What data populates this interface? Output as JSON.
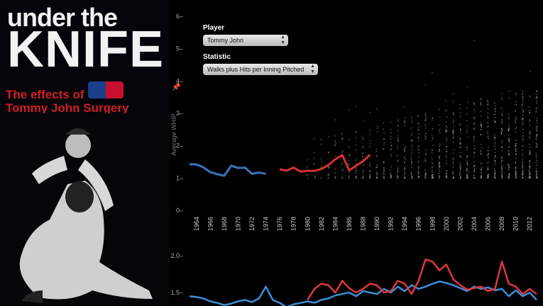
{
  "brand": {
    "title_line_1": "under the",
    "title_line_2": "KNIFE",
    "subtitle_line_1": "The effects of",
    "subtitle_line_2": "Tommy John Surgery",
    "mlb_logo_icon": "mlb-logo"
  },
  "controls": {
    "player_label": "Player",
    "player_value": "Tommy John",
    "statistic_label": "Statistic",
    "statistic_value": "Walks plus Hits per Inning Pitched"
  },
  "colors": {
    "pre_surgery": "#3b73b9",
    "post_surgery": "#d6312f",
    "league_line_blue": "#3a8fd8",
    "league_line_red": "#e0373a"
  },
  "chart_data": [
    {
      "type": "line",
      "ylabel": "Average WHIP",
      "ylim": [
        0,
        6
      ],
      "y_ticks": [
        "0",
        "1",
        "2",
        "3",
        "4",
        "5",
        "6"
      ],
      "x_ticks": [
        "1964",
        "1966",
        "1968",
        "1970",
        "1972",
        "1974",
        "1976",
        "1978",
        "1980",
        "1982",
        "1984",
        "1986",
        "1988",
        "1990",
        "1992",
        "1994",
        "1996",
        "1998",
        "2000",
        "2002",
        "2004",
        "2006",
        "2008",
        "2010",
        "2012"
      ],
      "xlim": [
        1963,
        2013
      ],
      "series": [
        {
          "x": [
            1963,
            1964,
            1965,
            1966,
            1967,
            1968,
            1969,
            1970,
            1971,
            1972,
            1973,
            1974
          ],
          "values": [
            1.43,
            1.42,
            1.33,
            1.18,
            1.12,
            1.07,
            1.38,
            1.31,
            1.32,
            1.13,
            1.17,
            1.13
          ]
        },
        {
          "x": [
            1976,
            1977,
            1978,
            1979,
            1980,
            1981,
            1982,
            1983,
            1984,
            1985,
            1986,
            1987,
            1988,
            1989
          ],
          "values": [
            1.27,
            1.23,
            1.32,
            1.2,
            1.22,
            1.22,
            1.28,
            1.4,
            1.58,
            1.71,
            1.24,
            1.38,
            1.52,
            1.72
          ]
        }
      ]
    },
    {
      "type": "line",
      "y_ticks": [
        "1.5",
        "2.0"
      ],
      "xlim": [
        1963,
        2013
      ],
      "series": [
        {
          "x": [
            1963,
            1964,
            1965,
            1966,
            1967,
            1968,
            1969,
            1970,
            1971,
            1972,
            1973,
            1974,
            1975,
            1976,
            1977,
            1978,
            1979,
            1980,
            1981,
            1982,
            1983,
            1984,
            1985,
            1986,
            1987,
            1988,
            1989,
            1990,
            1991,
            1992,
            1993,
            1994,
            1995,
            1996,
            1997,
            1998,
            1999,
            2000,
            2001,
            2002,
            2003,
            2004,
            2005,
            2006,
            2007,
            2008,
            2009,
            2010,
            2011,
            2012,
            2013
          ],
          "values": [
            1.45,
            1.44,
            1.42,
            1.38,
            1.36,
            1.33,
            1.35,
            1.38,
            1.4,
            1.37,
            1.42,
            1.58,
            1.4,
            1.36,
            1.3,
            1.34,
            1.36,
            1.38,
            1.36,
            1.4,
            1.42,
            1.46,
            1.48,
            1.5,
            1.45,
            1.52,
            1.5,
            1.48,
            1.55,
            1.5,
            1.58,
            1.52,
            1.6,
            1.55,
            1.58,
            1.62,
            1.65,
            1.63,
            1.6,
            1.56,
            1.52,
            1.58,
            1.55,
            1.57,
            1.53,
            1.55,
            1.45,
            1.53,
            1.45,
            1.5,
            1.4
          ]
        },
        {
          "x": [
            1980,
            1981,
            1982,
            1983,
            1984,
            1985,
            1986,
            1987,
            1988,
            1989,
            1990,
            1991,
            1992,
            1993,
            1994,
            1995,
            1996,
            1997,
            1998,
            1999,
            2000,
            2001,
            2002,
            2003,
            2004,
            2005,
            2006,
            2007,
            2008,
            2009,
            2010,
            2011,
            2012,
            2013
          ],
          "values": [
            1.4,
            1.55,
            1.62,
            1.6,
            1.5,
            1.66,
            1.56,
            1.5,
            1.55,
            1.62,
            1.6,
            1.5,
            1.52,
            1.66,
            1.62,
            1.48,
            1.66,
            1.95,
            1.92,
            1.8,
            1.88,
            1.68,
            1.6,
            1.54,
            1.56,
            1.58,
            1.52,
            1.55,
            1.92,
            1.62,
            1.58,
            1.48,
            1.55,
            1.48
          ]
        }
      ]
    }
  ]
}
